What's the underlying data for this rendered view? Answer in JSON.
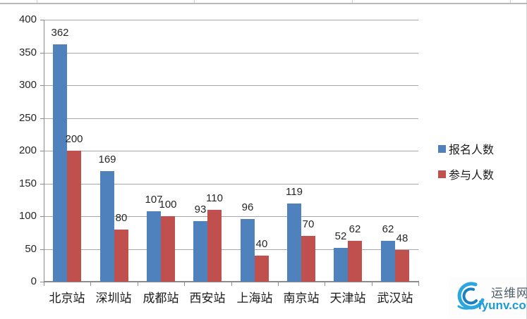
{
  "chart_data": {
    "type": "bar",
    "categories": [
      "北京站",
      "深圳站",
      "成都站",
      "西安站",
      "上海站",
      "南京站",
      "天津站",
      "武汉站"
    ],
    "series": [
      {
        "name": "报名人数",
        "color": "#4F81BD",
        "values": [
          362,
          169,
          107,
          93,
          96,
          119,
          52,
          62
        ]
      },
      {
        "name": "参与人数",
        "color": "#C0504D",
        "values": [
          200,
          80,
          100,
          110,
          40,
          70,
          62,
          48
        ]
      }
    ],
    "title": "",
    "xlabel": "",
    "ylabel": "",
    "ylim": [
      0,
      400
    ],
    "yticks": [
      0,
      50,
      100,
      150,
      200,
      250,
      300,
      350,
      400
    ],
    "grid": true,
    "data_labels": true,
    "legend_position": "right"
  },
  "watermark": {
    "site_name": "运维网",
    "site_url": "iyunv.com",
    "brand_color": "#1c9bd8"
  },
  "colors": {
    "series_blue": "#4F81BD",
    "series_red": "#C0504D",
    "gridline": "#a8a8a8",
    "axis": "#8c8c8c",
    "label_text": "#262626"
  }
}
